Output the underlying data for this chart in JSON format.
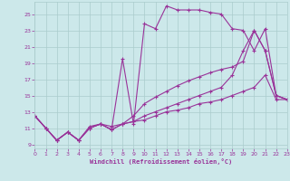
{
  "xlabel": "Windchill (Refroidissement éolien,°C)",
  "background_color": "#cce8ea",
  "grid_color": "#aacccc",
  "line_color": "#993399",
  "xlim": [
    0,
    23
  ],
  "ylim": [
    8.5,
    26.5
  ],
  "xticks": [
    0,
    1,
    2,
    3,
    4,
    5,
    6,
    7,
    8,
    9,
    10,
    11,
    12,
    13,
    14,
    15,
    16,
    17,
    18,
    19,
    20,
    21,
    22,
    23
  ],
  "yticks": [
    9,
    11,
    13,
    15,
    17,
    19,
    21,
    23,
    25
  ],
  "lines": [
    {
      "x": [
        0,
        1,
        2,
        3,
        4,
        5,
        6,
        7,
        8,
        9,
        10,
        11,
        12,
        13,
        14,
        15,
        16,
        17,
        18,
        19,
        20,
        21,
        22,
        23
      ],
      "y": [
        12.5,
        11.0,
        9.5,
        10.5,
        9.5,
        11.0,
        11.5,
        10.8,
        19.5,
        11.5,
        23.8,
        23.2,
        26.0,
        25.5,
        25.5,
        25.5,
        25.2,
        25.0,
        23.2,
        23.0,
        20.5,
        23.2,
        15.0,
        14.5
      ]
    },
    {
      "x": [
        0,
        1,
        2,
        3,
        4,
        5,
        6,
        7,
        8,
        9,
        10,
        11,
        12,
        13,
        14,
        15,
        16,
        17,
        18,
        19,
        20,
        21,
        22,
        23
      ],
      "y": [
        12.5,
        11.0,
        9.5,
        10.5,
        9.5,
        11.0,
        11.5,
        10.8,
        11.5,
        12.5,
        14.0,
        14.8,
        15.5,
        16.2,
        16.8,
        17.3,
        17.8,
        18.2,
        18.5,
        19.2,
        23.0,
        20.5,
        15.0,
        14.5
      ]
    },
    {
      "x": [
        0,
        1,
        2,
        3,
        4,
        5,
        6,
        7,
        8,
        9,
        10,
        11,
        12,
        13,
        14,
        15,
        16,
        17,
        18,
        19,
        20,
        21,
        22,
        23
      ],
      "y": [
        12.5,
        11.0,
        9.5,
        10.5,
        9.5,
        11.0,
        11.5,
        10.8,
        11.5,
        11.8,
        12.5,
        13.0,
        13.5,
        14.0,
        14.5,
        15.0,
        15.5,
        16.0,
        17.5,
        20.5,
        23.0,
        20.5,
        15.0,
        14.5
      ]
    },
    {
      "x": [
        0,
        1,
        2,
        3,
        4,
        5,
        6,
        7,
        8,
        9,
        10,
        11,
        12,
        13,
        14,
        15,
        16,
        17,
        18,
        19,
        20,
        21,
        22,
        23
      ],
      "y": [
        12.5,
        11.0,
        9.5,
        10.5,
        9.5,
        11.2,
        11.5,
        11.2,
        11.5,
        11.8,
        12.0,
        12.5,
        13.0,
        13.2,
        13.5,
        14.0,
        14.2,
        14.5,
        15.0,
        15.5,
        16.0,
        17.5,
        14.5,
        14.5
      ]
    }
  ]
}
